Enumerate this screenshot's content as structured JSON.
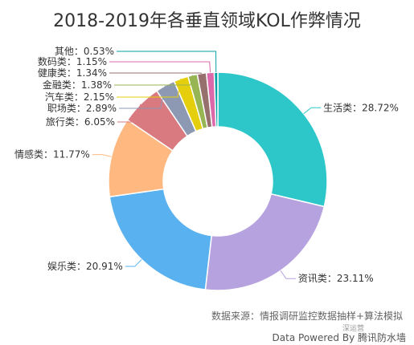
{
  "chart_data": {
    "type": "pie",
    "title": "2018-2019年各垂直领域KOL作弊情况",
    "donut": true,
    "slices": [
      {
        "label": "生活类",
        "value": 28.72,
        "text": "生活类：28.72%",
        "color": "#2ec7c9"
      },
      {
        "label": "资讯类",
        "value": 23.11,
        "text": "资讯类：23.11%",
        "color": "#b6a2de"
      },
      {
        "label": "娱乐类",
        "value": 20.91,
        "text": "娱乐类：20.91%",
        "color": "#5ab1ef"
      },
      {
        "label": "情感类",
        "value": 11.77,
        "text": "情感类：11.77%",
        "color": "#ffb980"
      },
      {
        "label": "旅行类",
        "value": 6.05,
        "text": "旅行类：6.05%",
        "color": "#d87a80"
      },
      {
        "label": "职场类",
        "value": 2.89,
        "text": "职场类：2.89%",
        "color": "#8d98b3"
      },
      {
        "label": "汽车类",
        "value": 2.15,
        "text": "汽车类：2.15%",
        "color": "#e5cf0d"
      },
      {
        "label": "金融类",
        "value": 1.38,
        "text": "金融类：1.38%",
        "color": "#97b552"
      },
      {
        "label": "健康类",
        "value": 1.34,
        "text": "健康类：1.34%",
        "color": "#95706d"
      },
      {
        "label": "数码类",
        "value": 1.15,
        "text": "数码类：1.15%",
        "color": "#dc69aa"
      },
      {
        "label": "其他",
        "value": 0.53,
        "text": "其他：0.53%",
        "color": "#07a2a4"
      }
    ]
  },
  "footer": {
    "source": "数据来源：情报调研监控数据抽样+算法模拟",
    "sub": "深运营",
    "powered": "Data Powered By 腾讯防水墙"
  }
}
